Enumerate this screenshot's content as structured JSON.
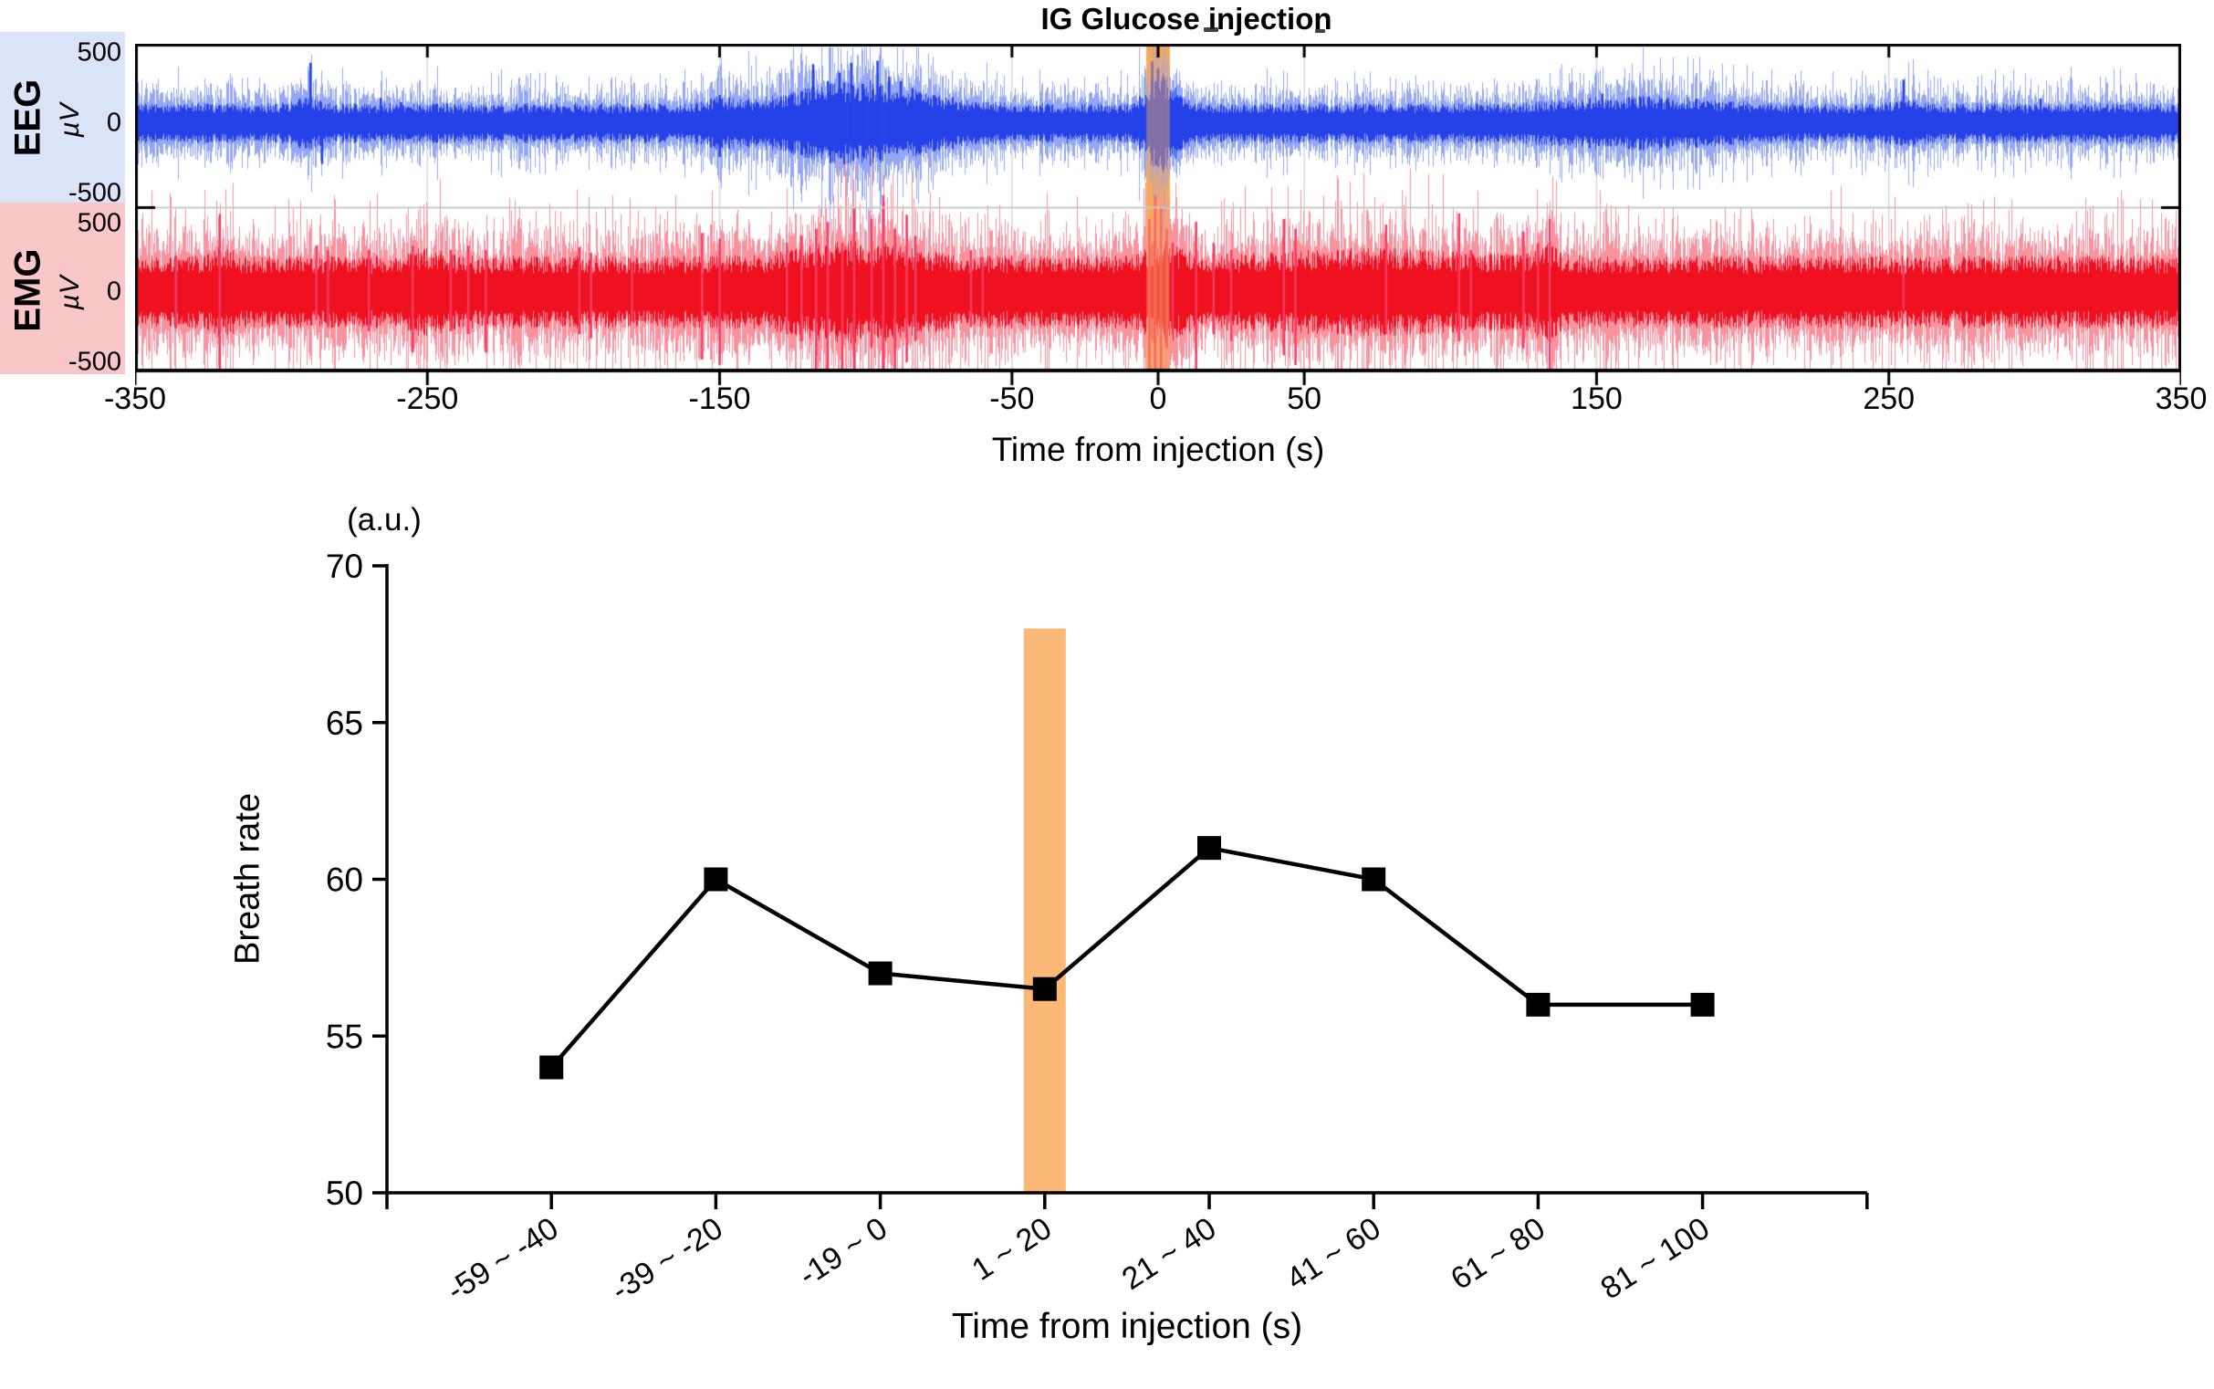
{
  "figure_title": "IG Glucose injection",
  "colors": {
    "eeg_bg": "#D9E4F8",
    "emg_bg": "#FAC7C9",
    "band": "#F7A95C",
    "band_overlay": "rgba(247,169,92,0.45)",
    "bar": "#FBB877",
    "grid": "#D9D9D9",
    "separator": "#C9C9C9",
    "axis": "#000000"
  },
  "top_chart": {
    "x_label": "Time from injection (s)",
    "eeg": {
      "name": "EEG",
      "unit": "µV",
      "y_ticks": [
        "500",
        "0",
        "-500"
      ]
    },
    "emg": {
      "name": "EMG",
      "unit": "µV",
      "y_ticks": [
        "500",
        "0",
        "-500"
      ]
    }
  },
  "bottom_chart": {
    "y_unit": "(a.u.)",
    "y_label": "Breath rate",
    "x_label": "Time from injection (s)"
  },
  "chart_data": [
    {
      "type": "line",
      "id": "eeg-emg-traces",
      "title": "IG Glucose injection",
      "xlabel": "Time from injection (s)",
      "x_range": [
        -350,
        350
      ],
      "x_ticks": [
        -350,
        -250,
        -150,
        -50,
        0,
        50,
        150,
        250,
        350
      ],
      "gridline_ticks": [
        -250,
        -150,
        -50,
        0,
        50,
        150,
        250
      ],
      "injection_band_s": [
        -4,
        4
      ],
      "panels": [
        {
          "name": "EEG",
          "unit": "µV",
          "ylim": [
            -580,
            580
          ],
          "y_ticks": [
            500,
            0,
            -500
          ]
        },
        {
          "name": "EMG",
          "unit": "µV",
          "ylim": [
            -580,
            580
          ],
          "y_ticks": [
            500,
            0,
            -500
          ]
        }
      ],
      "eeg": {
        "seed": 7,
        "core": "#2442E8",
        "fringe": "#95A7F3",
        "spike_color": "#2442E8",
        "noise_uv": 130,
        "envelope": [
          [
            -103,
            20,
            1.15
          ],
          [
            1,
            4.5,
            1.5
          ],
          [
            165,
            22,
            0.4
          ],
          [
            -292,
            4,
            0.35
          ],
          [
            255,
            4,
            0.3
          ],
          [
            -150,
            6,
            0.25
          ]
        ],
        "spikes": [
          [
            -290,
            430,
            140
          ],
          [
            -286,
            80,
            290
          ],
          [
            -266,
            180,
            90
          ],
          [
            -259,
            150,
            80
          ],
          [
            -150,
            200,
            240
          ],
          [
            -118,
            420,
            160
          ],
          [
            -113,
            300,
            190
          ],
          [
            -109,
            360,
            140
          ],
          [
            -105,
            430,
            170
          ],
          [
            -101,
            280,
            130
          ],
          [
            -96,
            445,
            175
          ],
          [
            -92,
            330,
            210
          ],
          [
            -88,
            300,
            160
          ],
          [
            -84,
            250,
            140
          ],
          [
            -2,
            440,
            260
          ],
          [
            0,
            390,
            310
          ],
          [
            2,
            310,
            270
          ],
          [
            152,
            210,
            120
          ],
          [
            168,
            190,
            130
          ],
          [
            255,
            310,
            100
          ],
          [
            302,
            175,
            70
          ]
        ]
      },
      "emg": {
        "seed": 13,
        "core": "#EF1020",
        "fringe": "#F9929F",
        "spike_color": "#F43B63",
        "noise_uv": 235,
        "envelope": [
          [
            -104,
            16,
            0.45
          ],
          [
            1,
            5,
            0.5
          ],
          [
            72,
            28,
            0.22
          ],
          [
            -250,
            5,
            0.25
          ],
          [
            -320,
            3,
            0.3
          ],
          [
            133,
            4,
            0.3
          ]
        ],
        "spikes": [
          [
            -336,
            260,
            260
          ],
          [
            -321,
            555,
            570
          ],
          [
            -288,
            330,
            200
          ],
          [
            -284,
            300,
            250
          ],
          [
            -270,
            300,
            280
          ],
          [
            -255,
            330,
            430
          ],
          [
            -242,
            300,
            280
          ],
          [
            -236,
            330,
            300
          ],
          [
            -230,
            300,
            430
          ],
          [
            -198,
            320,
            300
          ],
          [
            -194,
            280,
            330
          ],
          [
            -180,
            200,
            180
          ],
          [
            -156,
            420,
            480
          ],
          [
            -150,
            380,
            520
          ],
          [
            -127,
            350,
            300
          ],
          [
            -122,
            400,
            350
          ],
          [
            -117,
            450,
            570
          ],
          [
            -113,
            500,
            570
          ],
          [
            -108,
            350,
            570
          ],
          [
            -104,
            600,
            570
          ],
          [
            -98,
            520,
            400
          ],
          [
            -94,
            690,
            570
          ],
          [
            -90,
            450,
            570
          ],
          [
            -86,
            550,
            500
          ],
          [
            -83,
            400,
            350
          ],
          [
            -64,
            300,
            250
          ],
          [
            -60,
            250,
            200
          ],
          [
            -3,
            520,
            570
          ],
          [
            -1,
            690,
            570
          ],
          [
            1,
            600,
            570
          ],
          [
            3,
            450,
            400
          ],
          [
            5,
            350,
            300
          ],
          [
            13,
            500,
            560
          ],
          [
            19,
            350,
            300
          ],
          [
            25,
            300,
            350
          ],
          [
            43,
            520,
            450
          ],
          [
            47,
            450,
            520
          ],
          [
            78,
            480,
            300
          ],
          [
            103,
            560,
            350
          ],
          [
            107,
            300,
            250
          ],
          [
            125,
            430,
            400
          ],
          [
            130,
            350,
            300
          ],
          [
            134,
            520,
            570
          ],
          [
            255,
            190,
            120
          ]
        ]
      }
    },
    {
      "type": "line",
      "id": "breath-rate",
      "categories": [
        "-59 ~ -40",
        "-39 ~ -20",
        "-19 ~ 0",
        "1 ~ 20",
        "21 ~ 40",
        "41 ~ 60",
        "61 ~ 80",
        "81 ~ 100"
      ],
      "values": [
        54,
        60,
        57,
        56.5,
        61,
        60,
        56,
        56
      ],
      "highlight_category": "1 ~ 20",
      "highlight_bar_top": 68,
      "title": "",
      "xlabel": "Time from injection (s)",
      "ylabel": "Breath rate",
      "y_unit": "(a.u.)",
      "ylim": [
        50,
        70
      ],
      "y_ticks": [
        50,
        55,
        60,
        65,
        70
      ],
      "marker": "square",
      "line_color": "#000000",
      "grid": false,
      "legend": "none"
    }
  ]
}
